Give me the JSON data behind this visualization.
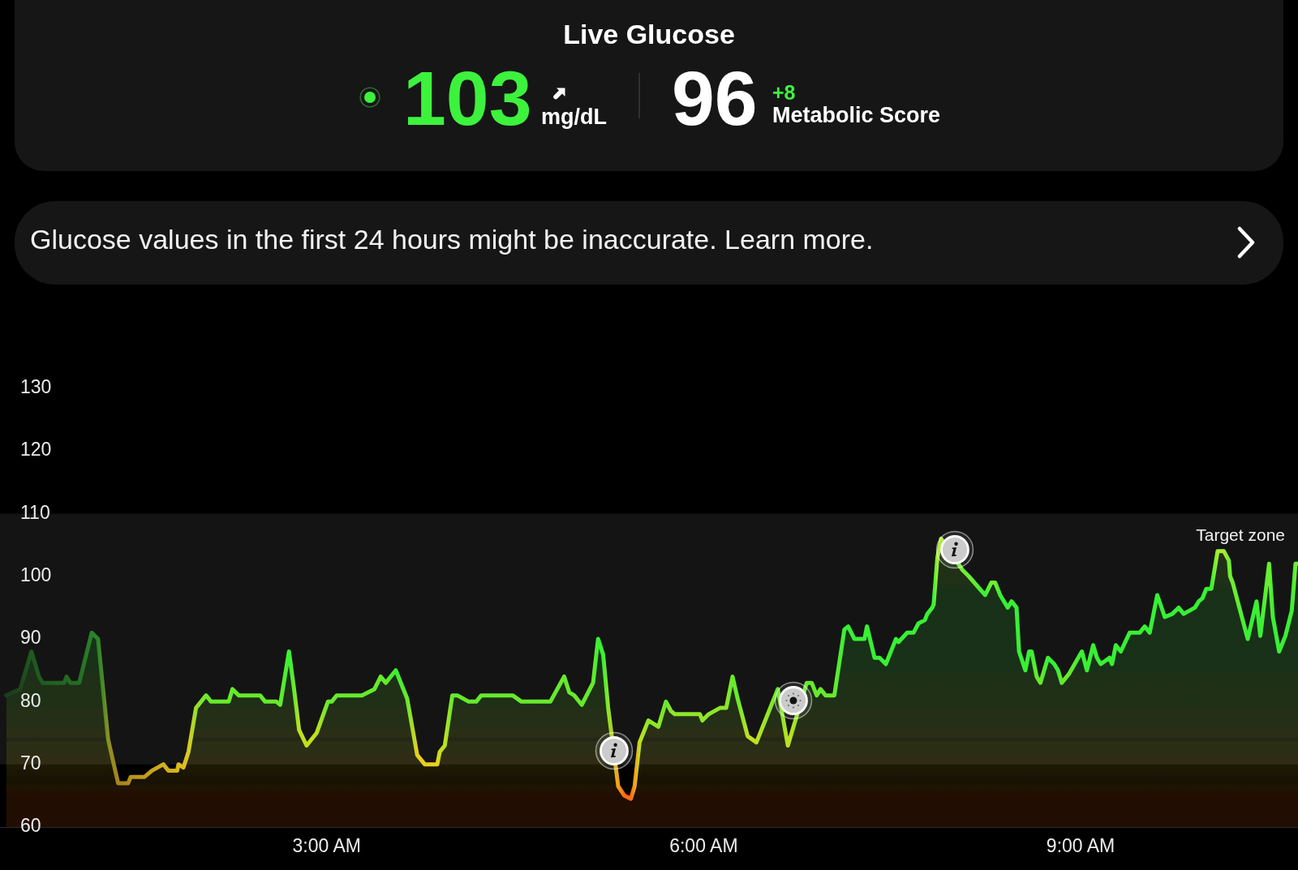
{
  "chart_data": [
    {
      "type": "other",
      "title": "Live Glucose",
      "annotations": [
        "103",
        "mg/dL",
        "96",
        "+8",
        "Metabolic Score",
        "Glucose values in the first 24 hours might be inaccurate. Learn more."
      ]
    },
    {
      "type": "area",
      "grid": false,
      "marker": "none",
      "line_style": "solid",
      "xlim": [
        0.4,
        10.73
      ],
      "xticks": [
        {
          "value": 3,
          "label": "3:00 AM"
        },
        {
          "value": 6,
          "label": "6:00 AM"
        },
        {
          "value": 9,
          "label": "9:00 AM"
        }
      ],
      "ylim": [
        60,
        130
      ],
      "yticks": [
        60,
        70,
        80,
        90,
        100,
        110,
        120,
        130
      ],
      "bands": [
        {
          "axis": "y",
          "from": 70,
          "to": 110,
          "label": "Target zone",
          "color": "#141414"
        }
      ],
      "x": [
        0.45,
        0.56,
        0.65,
        0.71,
        0.74,
        0.91,
        0.93,
        0.96,
        1.03,
        1.13,
        1.18,
        1.22,
        1.26,
        1.34,
        1.42,
        1.44,
        1.55,
        1.61,
        1.7,
        1.74,
        1.81,
        1.82,
        1.86,
        1.9,
        1.96,
        2.04,
        2.08,
        2.22,
        2.25,
        2.3,
        2.47,
        2.51,
        2.6,
        2.63,
        2.7,
        2.74,
        2.78,
        2.84,
        2.92,
        3.01,
        3.04,
        3.08,
        3.28,
        3.38,
        3.43,
        3.47,
        3.55,
        3.64,
        3.72,
        3.78,
        3.88,
        3.9,
        3.94,
        4.0,
        4.04,
        4.13,
        4.19,
        4.23,
        4.48,
        4.55,
        4.66,
        4.78,
        4.89,
        4.93,
        4.97,
        5.03,
        5.12,
        5.16,
        5.2,
        5.24,
        5.27,
        5.32,
        5.37,
        5.42,
        5.45,
        5.49,
        5.56,
        5.64,
        5.7,
        5.74,
        5.77,
        5.97,
        5.99,
        6.04,
        6.13,
        6.18,
        6.23,
        6.27,
        6.35,
        6.42,
        6.52,
        6.59,
        6.63,
        6.67,
        6.71,
        6.77,
        6.82,
        6.86,
        6.9,
        6.93,
        6.97,
        7.04,
        7.12,
        7.15,
        7.2,
        7.28,
        7.3,
        7.36,
        7.4,
        7.45,
        7.53,
        7.55,
        7.62,
        7.67,
        7.71,
        7.76,
        7.78,
        7.82,
        7.83,
        7.86,
        7.89,
        7.95,
        8.06,
        8.11,
        8.24,
        8.29,
        8.32,
        8.36,
        8.42,
        8.45,
        8.49,
        8.51,
        8.56,
        8.59,
        8.61,
        8.65,
        8.68,
        8.74,
        8.79,
        8.82,
        8.85,
        8.91,
        9.01,
        9.05,
        9.1,
        9.13,
        9.16,
        9.23,
        9.25,
        9.28,
        9.32,
        9.39,
        9.47,
        9.51,
        9.55,
        9.61,
        9.67,
        9.73,
        9.78,
        9.82,
        9.91,
        9.94,
        9.97,
        10.0,
        10.04,
        10.09,
        10.14,
        10.18,
        10.19,
        10.21,
        10.33,
        10.4,
        10.43,
        10.5,
        10.53,
        10.58,
        10.63,
        10.68,
        10.71,
        10.73
      ],
      "series": [
        {
          "values": [
            81,
            82,
            88,
            84,
            83,
            83,
            84,
            83,
            83,
            91,
            90,
            82,
            74,
            67,
            67,
            68,
            68,
            69,
            70,
            69,
            69,
            70,
            69.5,
            72,
            79,
            81,
            80,
            80,
            82,
            81,
            81,
            80,
            80,
            79.5,
            88,
            82,
            75.5,
            73,
            75,
            80,
            80,
            81,
            81,
            82,
            84,
            83,
            85,
            80.5,
            71.5,
            70,
            70,
            72,
            73,
            81,
            81,
            80,
            80,
            81,
            81,
            80,
            80,
            80,
            84,
            81.5,
            81,
            79.5,
            83,
            90,
            87.5,
            79,
            null,
            66.5,
            65,
            64.5,
            66.5,
            73.5,
            77,
            76,
            80,
            78.5,
            78,
            78,
            77,
            78,
            79,
            79,
            84,
            80.5,
            74.5,
            73.5,
            78.5,
            82,
            null,
            73,
            null,
            null,
            83,
            83,
            81,
            82,
            81,
            81,
            91.5,
            92,
            90,
            90,
            92,
            87,
            87,
            86,
            90,
            89.5,
            91,
            91,
            92.5,
            93,
            94,
            95,
            95.5,
            103,
            106,
            null,
            101,
            100,
            97,
            99,
            99,
            97,
            95,
            96,
            95,
            88,
            85,
            88,
            88,
            84,
            83,
            87,
            86,
            85,
            83,
            84.5,
            88,
            85,
            89,
            87,
            86,
            87,
            86,
            89,
            88,
            91,
            91,
            92,
            91,
            97,
            93.5,
            94,
            95,
            94,
            95,
            96,
            96.5,
            98,
            98,
            104,
            104,
            102.5,
            100,
            99,
            90,
            96,
            90.5,
            102,
            93.5,
            88,
            90.5,
            94.5,
            102,
            102
          ],
          "colors": [
            "#1a3d1a",
            "#1c461c",
            "#1f5a1f",
            "#205a20",
            "#205c20",
            "#226622",
            "#236a23",
            "#236a23",
            "#246e24",
            "#2a822a",
            "#2c842a",
            "#4a8a26",
            "#8a9222",
            "#a8841c",
            "#b08a1c",
            "#b8901c",
            "#c09a1c",
            "#c8a41c",
            "#d0b01e",
            "#d0ae1e",
            "#d6b41e",
            "#dabc1e",
            "#dcbc1e",
            "#d8cc20",
            "#98e028",
            "#6ee82c",
            "#66ea2c",
            "#66ea2c",
            "#66ea2c",
            "#66ea2c",
            "#66ea2c",
            "#66ea2c",
            "#66ea2c",
            "#66ea2c",
            "#38f034",
            "#66ea2c",
            "#c0e020",
            "#c0e020",
            "#c0e020",
            "#66ea2c",
            "#66ea2c",
            "#66ea2c",
            "#66ea2c",
            "#66ea2c",
            "#66ea2c",
            "#66ea2c",
            "#38f034",
            "#66ea2c",
            "#e8d01c",
            "#e8d01c",
            "#e8d01c",
            "#c0e020",
            "#c0e020",
            "#66ea2c",
            "#66ea2c",
            "#66ea2c",
            "#66ea2c",
            "#66ea2c",
            "#66ea2c",
            "#66ea2c",
            "#66ea2c",
            "#66ea2c",
            "#66ea2c",
            "#66ea2c",
            "#66ea2c",
            "#66ea2c",
            "#66ea2c",
            "#38f034",
            "#38f034",
            "#8ee628",
            "#c0e020",
            "#f8a018",
            "#ff6a10",
            "#ff6a10",
            "#f8a018",
            "#c0e020",
            "#8ee628",
            "#8ee628",
            "#66ea2c",
            "#8ee628",
            "#8ee628",
            "#8ee628",
            "#8ee628",
            "#8ee628",
            "#8ee628",
            "#8ee628",
            "#66ea2c",
            "#66ea2c",
            "#c0e020",
            "#c0e020",
            "#8ee628",
            "#66ea2c",
            "#66ea2c",
            "#c0e020",
            "#66ea2c",
            "#66ea2c",
            "#66ea2c",
            "#66ea2c",
            "#66ea2c",
            "#66ea2c",
            "#66ea2c",
            "#66ea2c",
            "#38f034",
            "#38f034",
            "#38f034",
            "#38f034",
            "#38f034",
            "#38f034",
            "#38f034",
            "#38f034",
            "#38f034",
            "#38f034",
            "#38f034",
            "#38f034",
            "#38f034",
            "#38f034",
            "#38f034",
            "#38f034",
            "#38f034",
            "#a8ec30",
            "#a8ec30",
            "#a8ec30",
            "#70ee30",
            "#70ee30",
            "#38f034",
            "#70ee30",
            "#70ee30",
            "#38f034",
            "#38f034",
            "#38f034",
            "#38f034",
            "#38f034",
            "#38f034",
            "#38f034",
            "#38f034",
            "#66ea2c",
            "#66ea2c",
            "#38f034",
            "#38f034",
            "#38f034",
            "#66ea2c",
            "#66ea2c",
            "#38f034",
            "#38f034",
            "#38f034",
            "#38f034",
            "#38f034",
            "#38f034",
            "#38f034",
            "#38f034",
            "#38f034",
            "#38f034",
            "#38f034",
            "#38f034",
            "#38f034",
            "#38f034",
            "#38f034",
            "#38f034",
            "#38f034",
            "#38f034",
            "#38f034",
            "#38f034",
            "#38f034",
            "#38f034",
            "#38f034",
            "#a8ec30",
            "#a8ec30",
            "#70ee30",
            "#70ee30",
            "#70ee30",
            "#38f034",
            "#38f034",
            "#38f034",
            "#70ee30",
            "#38f034",
            "#38f034",
            "#38f034",
            "#38f034",
            "#70ee30",
            "#70ee30"
          ]
        }
      ]
    }
  ]
}
